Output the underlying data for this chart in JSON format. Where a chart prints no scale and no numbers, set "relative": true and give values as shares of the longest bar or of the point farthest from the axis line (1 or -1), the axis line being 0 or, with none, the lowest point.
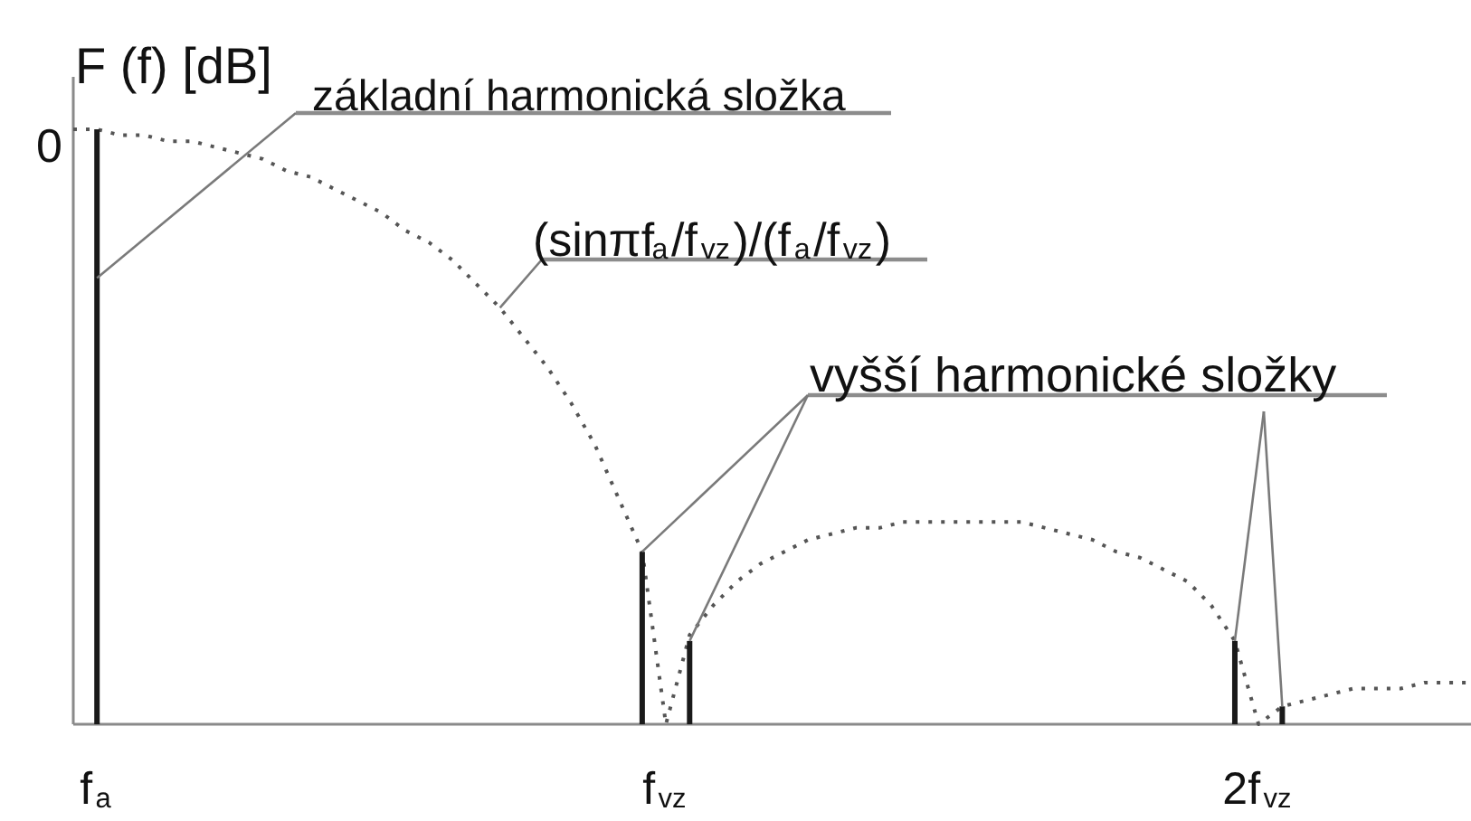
{
  "chart_data": {
    "type": "line",
    "relative": true,
    "ylabel": "F (f) [dB]",
    "categories": [
      null,
      "f$_{a}$",
      null,
      null,
      null,
      null,
      null,
      null,
      null,
      null,
      null,
      null,
      null,
      null,
      null,
      null,
      null,
      null,
      null,
      null,
      null,
      null,
      null,
      null,
      null,
      "f$_{vz}$",
      null,
      null,
      null,
      null,
      null,
      null,
      null,
      null,
      null,
      null,
      null,
      null,
      null,
      null,
      null,
      null,
      null,
      null,
      null,
      null,
      null,
      null,
      null,
      null,
      "2f$_{vz}$",
      null,
      null,
      null,
      null,
      null,
      null,
      null,
      null,
      null
    ],
    "line_style": "dotted",
    "series": [
      {
        "color": "#555555",
        "values": [
          1.0,
          1.0,
          0.99,
          0.99,
          0.98,
          0.98,
          0.97,
          0.96,
          0.95,
          0.93,
          0.92,
          0.9,
          0.88,
          0.86,
          0.83,
          0.81,
          0.78,
          0.74,
          0.7,
          0.65,
          0.6,
          0.54,
          0.47,
          0.38,
          0.29,
          0,
          0.15,
          0.2,
          0.24,
          0.27,
          0.29,
          0.31,
          0.32,
          0.33,
          0.33,
          0.34,
          0.34,
          0.34,
          0.34,
          0.34,
          0.34,
          0.33,
          0.32,
          0.31,
          0.29,
          0.28,
          0.26,
          0.24,
          0.2,
          0.14,
          0,
          0.03,
          0.04,
          0.05,
          0.06,
          0.06,
          0.06,
          0.07,
          0.07,
          0.07
        ]
      },
      {
        "type": "bar",
        "color": "#1a1a1a",
        "values": [
          null,
          1.0,
          null,
          null,
          null,
          null,
          null,
          null,
          null,
          null,
          null,
          null,
          null,
          null,
          null,
          null,
          null,
          null,
          null,
          null,
          null,
          null,
          null,
          null,
          0.29,
          null,
          0.14,
          null,
          null,
          null,
          null,
          null,
          null,
          null,
          null,
          null,
          null,
          null,
          null,
          null,
          null,
          null,
          null,
          null,
          null,
          null,
          null,
          null,
          null,
          0.14,
          null,
          0.03,
          null,
          null,
          null,
          null,
          null,
          null,
          null,
          null
        ]
      }
    ],
    "annotations": [
      "0",
      {
        "text": "základní harmonická složka",
        "x": "f$_{a}$",
        "y": 0.75
      },
      "(sinπf$_{a}$/f$_{vz}$)/(f$_{a}$/f$_{vz}$)",
      "vyšší harmonické složky"
    ]
  }
}
